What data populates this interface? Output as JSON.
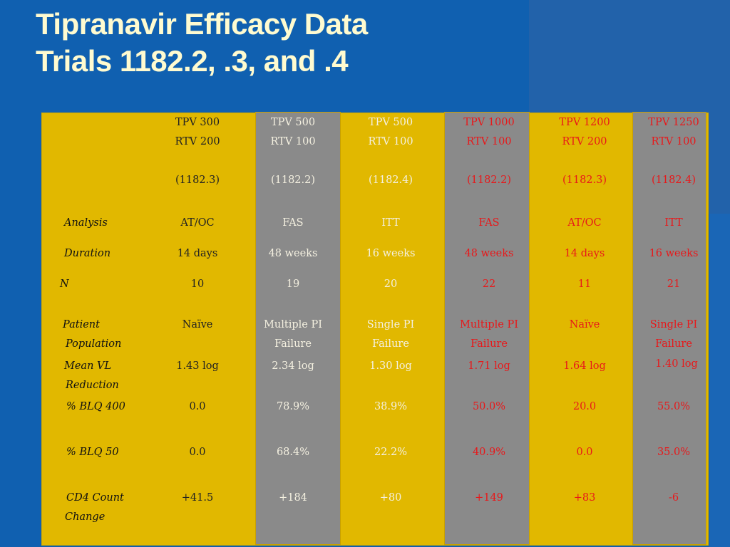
{
  "title": {
    "line1": "Tipranavir Efficacy Data",
    "line2": "Trials 1182.2, .3, and .4"
  },
  "row_labels": {
    "analysis": "Analysis",
    "duration": "Duration",
    "n": "N",
    "patient_population": [
      "Patient",
      "Population"
    ],
    "mean_vl_reduction": [
      "Mean VL",
      "Reduction"
    ],
    "blq400": "% BLQ 400",
    "blq50": "% BLQ 50",
    "cd4": [
      "CD4 Count",
      "Change"
    ]
  },
  "columns": [
    {
      "dose1": "TPV 300",
      "dose2": "RTV 200",
      "trial": "(1182.3)",
      "analysis": "AT/OC",
      "duration": "14 days",
      "n": "10",
      "population": [
        "Naïve",
        ""
      ],
      "mean_vl": "1.43 log",
      "blq400": "0.0",
      "blq50": "0.0",
      "cd4": "+41.5"
    },
    {
      "dose1": "TPV 500",
      "dose2": "RTV 100",
      "trial": "(1182.2)",
      "analysis": "FAS",
      "duration": "48 weeks",
      "n": "19",
      "population": [
        "Multiple PI",
        "Failure"
      ],
      "mean_vl": "2.34 log",
      "blq400": "78.9%",
      "blq50": "68.4%",
      "cd4": "+184"
    },
    {
      "dose1": "TPV 500",
      "dose2": "RTV 100",
      "trial": "(1182.4)",
      "analysis": "ITT",
      "duration": "16 weeks",
      "n": "20",
      "population": [
        "Single PI",
        "Failure"
      ],
      "mean_vl": "1.30 log",
      "blq400": "38.9%",
      "blq50": "22.2%",
      "cd4": "+80"
    },
    {
      "dose1": "TPV 1000",
      "dose2": "RTV 100",
      "trial": "(1182.2)",
      "analysis": "FAS",
      "duration": "48 weeks",
      "n": "22",
      "population": [
        "Multiple PI",
        "Failure"
      ],
      "mean_vl": "1.71 log",
      "blq400": "50.0%",
      "blq50": "40.9%",
      "cd4": "+149"
    },
    {
      "dose1": "TPV 1200",
      "dose2": "RTV 200",
      "trial": "(1182.3)",
      "analysis": "AT/OC",
      "duration": "14 days",
      "n": "11",
      "population": [
        "Naïve",
        ""
      ],
      "mean_vl": "1.64 log",
      "blq400": "20.0",
      "blq50": "0.0",
      "cd4": "+83"
    },
    {
      "dose1": "TPV 1250",
      "dose2": "RTV 100",
      "trial": "(1182.4)",
      "analysis": "ITT",
      "duration": "16 weeks",
      "n": "21",
      "population": [
        "Single PI",
        "Failure"
      ],
      "mean_vl": "1.40 log",
      "blq400": "55.0%",
      "blq50": "35.0%",
      "cd4": "-6"
    }
  ],
  "colors": {
    "background": "#1060b0",
    "gold": "#e1b800",
    "gray": "#8a8a8a",
    "title": "#fffbd0",
    "red": "#e8181a"
  }
}
